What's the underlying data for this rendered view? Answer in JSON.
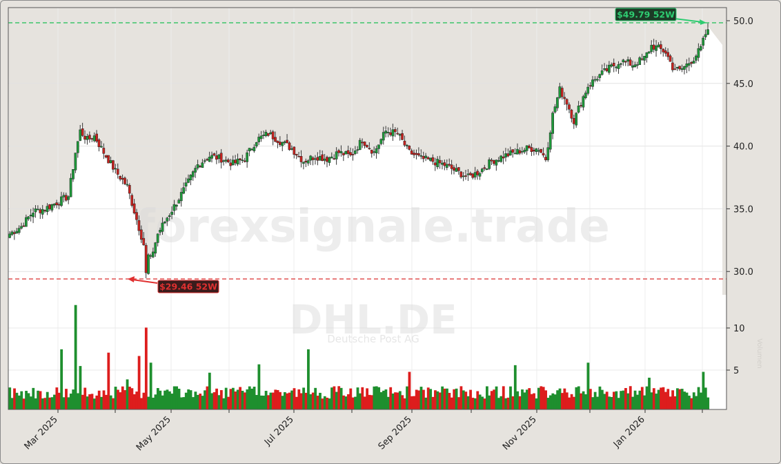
{
  "chart_data": {
    "type": "candlestick",
    "title": "",
    "ticker": "DHL.DE",
    "company": "Deutsche Post AG",
    "watermark": "forexsignale.trade",
    "xlabel": "",
    "ylabel": "",
    "volume_label": "Volumen",
    "x_tick_labels": [
      "Mar 2025",
      "May 2025",
      "Jul 2025",
      "Sep 2025",
      "Nov 2025",
      "Jan 2026"
    ],
    "price_axis": {
      "ticks": [
        30.0,
        35.0,
        40.0,
        45.0,
        50.0
      ],
      "tick_labels": [
        "30.0",
        "35.0",
        "40.0",
        "45.0",
        "50.0"
      ],
      "range": [
        27.5,
        51.0
      ]
    },
    "volume_axis": {
      "ticks": [
        5,
        10
      ],
      "tick_labels": [
        "5",
        "10"
      ],
      "unit": "M"
    },
    "grid": true,
    "annotations": {
      "high_52w": {
        "value": 49.79,
        "label": "$49.79 52W",
        "color": "#2ecc71"
      },
      "low_52w": {
        "value": 29.46,
        "label": "$29.46 52W",
        "color": "#e03030"
      }
    },
    "colors": {
      "up": "#1e9a3a",
      "down": "#c8231f",
      "vol_up": "#1e8f2e",
      "vol_down": "#dd1d1d",
      "fill_above": "#e6e3de",
      "plot_bg": "#ffffff"
    },
    "series": [
      {
        "name": "close",
        "approx_path": [
          [
            0,
            33.0
          ],
          [
            5,
            33.6
          ],
          [
            10,
            34.8
          ],
          [
            15,
            35.0
          ],
          [
            20,
            35.5
          ],
          [
            25,
            36.0
          ],
          [
            28,
            39.5
          ],
          [
            30,
            41.2
          ],
          [
            33,
            40.5
          ],
          [
            36,
            40.8
          ],
          [
            40,
            39.5
          ],
          [
            45,
            38.0
          ],
          [
            50,
            36.8
          ],
          [
            55,
            33.5
          ],
          [
            58,
            31.5
          ],
          [
            60,
            31.0
          ],
          [
            63,
            33.0
          ],
          [
            66,
            34.0
          ],
          [
            70,
            35.2
          ],
          [
            75,
            36.8
          ],
          [
            80,
            38.5
          ],
          [
            85,
            39.2
          ],
          [
            90,
            39.0
          ],
          [
            95,
            38.6
          ],
          [
            100,
            39.0
          ],
          [
            105,
            40.5
          ],
          [
            110,
            41.0
          ],
          [
            115,
            40.4
          ],
          [
            120,
            39.8
          ],
          [
            125,
            38.8
          ],
          [
            130,
            39.2
          ],
          [
            135,
            39.0
          ],
          [
            140,
            39.5
          ],
          [
            145,
            39.2
          ],
          [
            150,
            40.5
          ],
          [
            155,
            39.5
          ],
          [
            160,
            41.2
          ],
          [
            165,
            41.0
          ],
          [
            170,
            39.5
          ],
          [
            175,
            39.0
          ],
          [
            180,
            38.8
          ],
          [
            185,
            38.5
          ],
          [
            190,
            38.0
          ],
          [
            195,
            37.5
          ],
          [
            200,
            38.0
          ],
          [
            205,
            38.8
          ],
          [
            210,
            39.2
          ],
          [
            215,
            39.5
          ],
          [
            220,
            39.8
          ],
          [
            225,
            39.8
          ],
          [
            228,
            39.0
          ],
          [
            231,
            42.5
          ],
          [
            234,
            44.5
          ],
          [
            237,
            43.5
          ],
          [
            240,
            42.0
          ],
          [
            243,
            43.5
          ],
          [
            246,
            44.8
          ],
          [
            250,
            45.5
          ],
          [
            255,
            46.2
          ],
          [
            260,
            46.8
          ],
          [
            265,
            46.5
          ],
          [
            270,
            47.0
          ],
          [
            273,
            48.0
          ],
          [
            276,
            47.8
          ],
          [
            279,
            47.5
          ],
          [
            282,
            46.3
          ],
          [
            285,
            46.0
          ],
          [
            288,
            46.5
          ],
          [
            291,
            47.0
          ],
          [
            294,
            47.8
          ],
          [
            297,
            49.5
          ]
        ]
      }
    ]
  }
}
